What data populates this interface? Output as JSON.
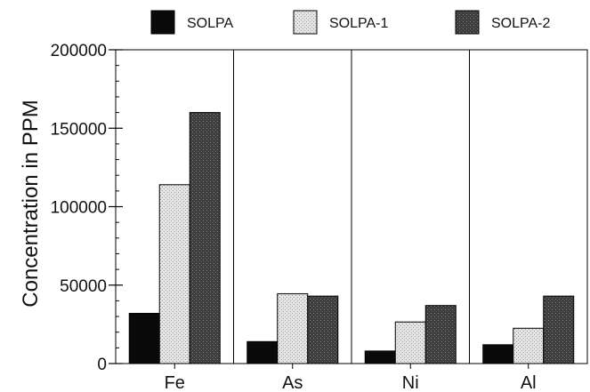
{
  "chart_data": {
    "type": "bar",
    "title": "",
    "xlabel": "",
    "ylabel": "Concentration in PPM",
    "categories": [
      "Fe",
      "As",
      "Ni",
      "Al"
    ],
    "series": [
      {
        "name": "SOLPA",
        "values": [
          32000,
          14000,
          8000,
          12000
        ],
        "color": "#0a0a0a",
        "pattern": "solid"
      },
      {
        "name": "SOLPA-1",
        "values": [
          114000,
          44500,
          26500,
          22500
        ],
        "color": "#dcdcdc",
        "pattern": "light-stipple"
      },
      {
        "name": "SOLPA-2",
        "values": [
          160000,
          43000,
          37000,
          43000
        ],
        "color": "#4a4a4a",
        "pattern": "dark-stipple"
      }
    ],
    "ylim": [
      0,
      200000
    ],
    "yticks": [
      0,
      50000,
      100000,
      150000,
      200000
    ],
    "ytick_labels": [
      "0",
      "50000",
      "100000",
      "150000",
      "200000"
    ],
    "legend_position": "top",
    "grid": false
  }
}
